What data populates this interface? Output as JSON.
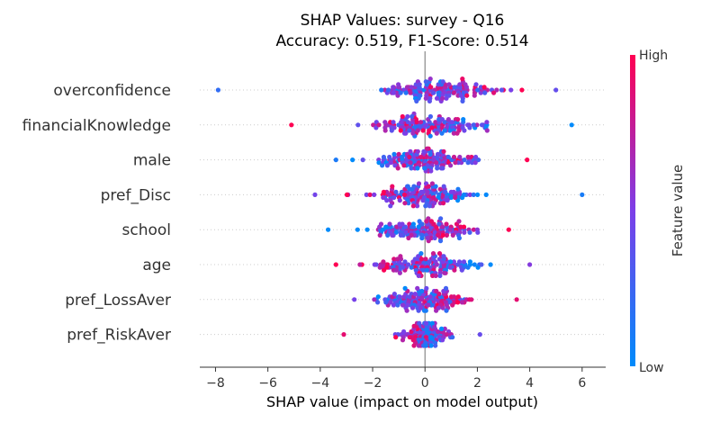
{
  "chart_data": {
    "type": "scatter",
    "title_line1": "SHAP Values: survey - Q16",
    "title_line2": "Accuracy: 0.519, F1-Score: 0.514",
    "xlabel": "SHAP value (impact on model output)",
    "xlim": [
      -8.6,
      6.9
    ],
    "x_ticks": [
      -8,
      -6,
      -4,
      -2,
      0,
      2,
      4,
      6
    ],
    "x_tick_labels": [
      "−8",
      "−6",
      "−4",
      "−2",
      "0",
      "2",
      "4",
      "6"
    ],
    "colorbar": {
      "label": "Feature value",
      "high": "High",
      "low": "Low",
      "high_color": "#ff0052",
      "low_color": "#008bfb"
    },
    "features": [
      {
        "name": "overconfidence",
        "min": -7.9,
        "max": 5.0,
        "spread": 2.2,
        "center": 0.4
      },
      {
        "name": "financialKnowledge",
        "min": -5.1,
        "max": 5.6,
        "spread": 2.0,
        "center": 0.3
      },
      {
        "name": "male",
        "min": -3.4,
        "max": 3.9,
        "spread": 1.8,
        "center": 0.0
      },
      {
        "name": "pref_Disc",
        "min": -4.2,
        "max": 6.0,
        "spread": 1.8,
        "center": 0.0
      },
      {
        "name": "school",
        "min": -3.7,
        "max": 3.2,
        "spread": 1.8,
        "center": 0.0
      },
      {
        "name": "age",
        "min": -3.4,
        "max": 4.0,
        "spread": 1.7,
        "center": 0.0
      },
      {
        "name": "pref_LossAver",
        "min": -2.7,
        "max": 3.5,
        "spread": 1.5,
        "center": 0.0
      },
      {
        "name": "pref_RiskAver",
        "min": -3.1,
        "max": 2.1,
        "spread": 0.8,
        "center": 0.0
      }
    ]
  }
}
